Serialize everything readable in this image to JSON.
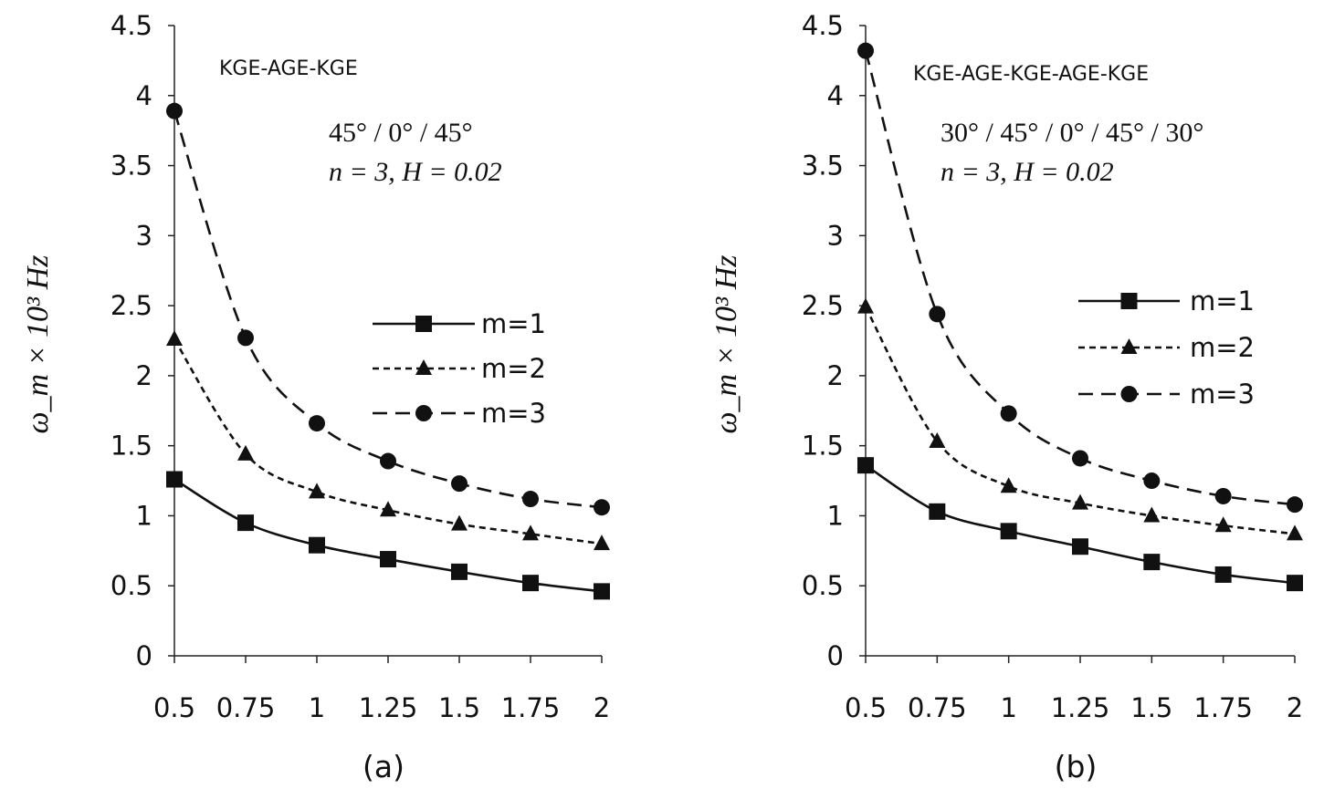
{
  "chart_data": [
    {
      "type": "line",
      "panel_label": "(a)",
      "layup": "KGE-AGE-KGE",
      "angles": "45° / 0° / 45°",
      "params": "n = 3,  H = 0.02",
      "ylabel": "ω_m × 10³ Hz",
      "xlabel": "",
      "x": [
        0.5,
        0.75,
        1,
        1.25,
        1.5,
        1.75,
        2
      ],
      "x_tick_labels": [
        "0.5",
        "0.75",
        "1",
        "1.25",
        "1.5",
        "1.75",
        "2"
      ],
      "y_tick_labels": [
        "0",
        "0.5",
        "1",
        "1.5",
        "2",
        "2.5",
        "3",
        "3.5",
        "4",
        "4.5"
      ],
      "xlim": [
        0.5,
        2
      ],
      "ylim": [
        0,
        4.5
      ],
      "grid": false,
      "legend_position": "center-right",
      "series": [
        {
          "name": "m=1",
          "marker": "square",
          "dash": "solid",
          "values": [
            1.26,
            0.95,
            0.79,
            0.69,
            0.6,
            0.52,
            0.46
          ]
        },
        {
          "name": "m=2",
          "marker": "triangle",
          "dash": "short-dash",
          "values": [
            2.26,
            1.44,
            1.17,
            1.04,
            0.94,
            0.87,
            0.8
          ]
        },
        {
          "name": "m=3",
          "marker": "circle",
          "dash": "long-dash",
          "values": [
            3.89,
            2.27,
            1.66,
            1.39,
            1.23,
            1.12,
            1.06
          ]
        }
      ]
    },
    {
      "type": "line",
      "panel_label": "(b)",
      "layup": "KGE-AGE-KGE-AGE-KGE",
      "angles": "30° / 45° / 0° / 45° / 30°",
      "params": "n = 3,  H = 0.02",
      "ylabel": "ω_m × 10³ Hz",
      "xlabel": "",
      "x": [
        0.5,
        0.75,
        1,
        1.25,
        1.5,
        1.75,
        2
      ],
      "x_tick_labels": [
        "0.5",
        "0.75",
        "1",
        "1.25",
        "1.5",
        "1.75",
        "2"
      ],
      "y_tick_labels": [
        "0",
        "0.5",
        "1",
        "1.5",
        "2",
        "2.5",
        "3",
        "3.5",
        "4",
        "4.5"
      ],
      "xlim": [
        0.5,
        2
      ],
      "ylim": [
        0,
        4.5
      ],
      "grid": false,
      "legend_position": "center-right",
      "series": [
        {
          "name": "m=1",
          "marker": "square",
          "dash": "solid",
          "values": [
            1.36,
            1.03,
            0.89,
            0.78,
            0.67,
            0.58,
            0.52
          ]
        },
        {
          "name": "m=2",
          "marker": "triangle",
          "dash": "short-dash",
          "values": [
            2.49,
            1.53,
            1.21,
            1.09,
            1.0,
            0.93,
            0.87
          ]
        },
        {
          "name": "m=3",
          "marker": "circle",
          "dash": "long-dash",
          "values": [
            4.32,
            2.44,
            1.73,
            1.41,
            1.25,
            1.14,
            1.08
          ]
        }
      ]
    }
  ]
}
